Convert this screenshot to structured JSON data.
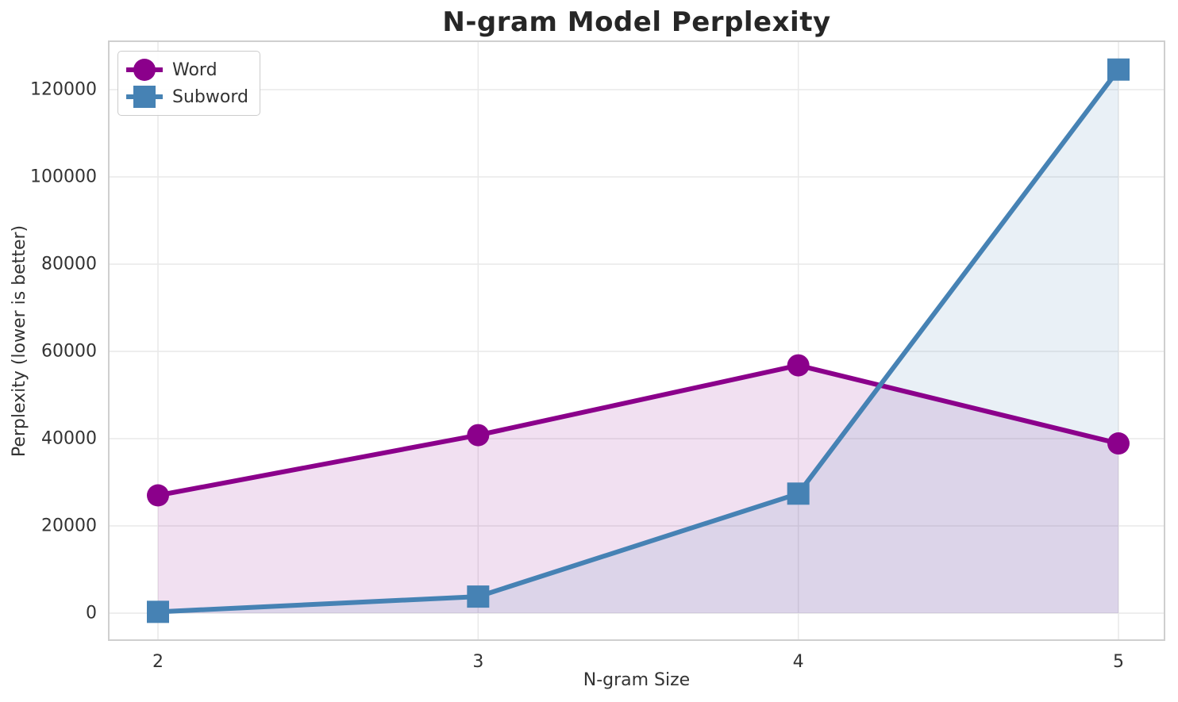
{
  "figure": {
    "background": "#ffffff",
    "grid_color": "#e9e9e9",
    "spine_color": "#cfcfcf",
    "text_color": "#333333",
    "title_color": "#262626"
  },
  "chart_data": {
    "type": "line",
    "title": "N-gram Model Perplexity",
    "xlabel": "N-gram Size",
    "ylabel": "Perplexity (lower is better)",
    "x": [
      2,
      3,
      4,
      5
    ],
    "x_tick_labels": [
      "2",
      "3",
      "4",
      "5"
    ],
    "y_ticks": [
      0,
      20000,
      40000,
      60000,
      80000,
      100000,
      120000
    ],
    "ylim": [
      0,
      131000
    ],
    "grid": true,
    "legend_position": "upper left",
    "series": [
      {
        "name": "Word",
        "color": "#8B008B",
        "marker": "circle",
        "fill_below": true,
        "fill_opacity": 0.12,
        "values": [
          27000,
          40800,
          56800,
          38900
        ]
      },
      {
        "name": "Subword",
        "color": "#4682B4",
        "marker": "square",
        "fill_below": true,
        "fill_opacity": 0.12,
        "values": [
          300,
          3800,
          27400,
          124600
        ]
      }
    ]
  }
}
